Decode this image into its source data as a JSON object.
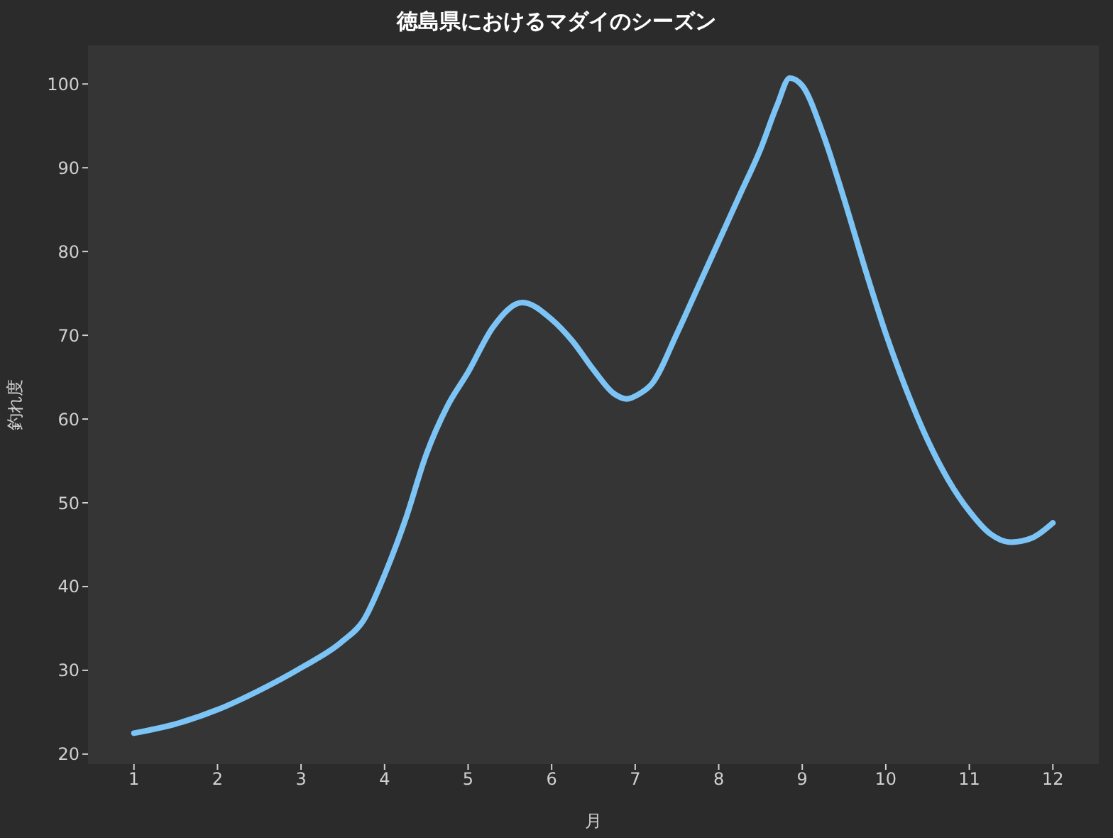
{
  "chart_data": {
    "type": "line",
    "title": "徳島県におけるマダイのシーズン",
    "xlabel": "月",
    "ylabel": "釣れ度",
    "x": [
      1,
      1.5,
      2,
      2.5,
      3,
      3.5,
      3.75,
      4,
      4.25,
      4.5,
      4.75,
      5,
      5.3,
      5.65,
      6,
      6.25,
      6.5,
      6.75,
      6.9,
      7.05,
      7.2,
      7.5,
      7.75,
      8,
      8.25,
      8.5,
      8.7,
      8.85,
      9,
      9.25,
      9.5,
      9.75,
      10,
      10.25,
      10.5,
      10.75,
      11,
      11.25,
      11.5,
      11.75,
      12
    ],
    "series": [
      {
        "color": "#7cc4f5",
        "values": [
          22.5,
          23.6,
          25.3,
          27.6,
          30.3,
          33.5,
          36,
          41.4,
          48,
          55.8,
          61.5,
          65.6,
          71,
          73.9,
          71.9,
          69.3,
          65.9,
          63,
          62.4,
          63,
          64.2,
          70.2,
          75.7,
          81.2,
          86.7,
          92.2,
          97.5,
          100.7,
          99.8,
          94,
          86.3,
          78,
          70.2,
          63.4,
          57.5,
          52.7,
          49,
          46.3,
          45.3,
          45.8,
          47.6
        ]
      }
    ],
    "xlim": [
      0.45,
      12.55
    ],
    "xticks": [
      1,
      2,
      3,
      4,
      5,
      6,
      7,
      8,
      9,
      10,
      11,
      12
    ],
    "ylim": [
      18.8,
      104.6
    ],
    "yticks": [
      20,
      30,
      40,
      50,
      60,
      70,
      80,
      90,
      100
    ],
    "grid": false,
    "legend": false,
    "marker": "none",
    "line_style": "solid"
  }
}
